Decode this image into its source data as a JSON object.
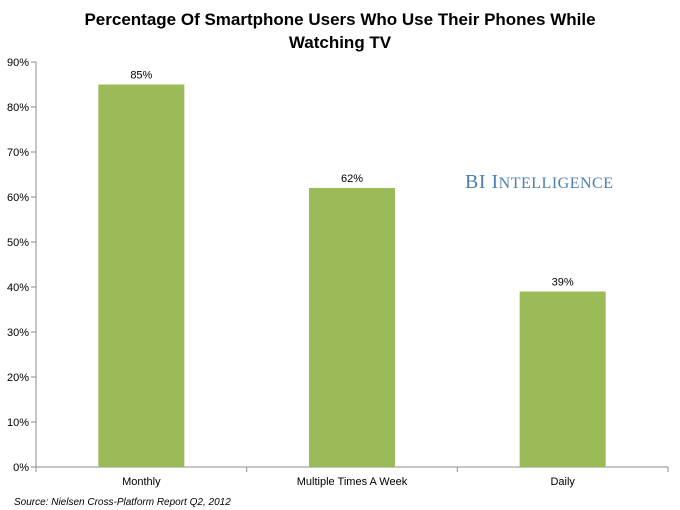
{
  "chart_data": {
    "type": "bar",
    "title_lines": [
      "Percentage Of Smartphone Users Who Use Their Phones While",
      "Watching TV"
    ],
    "categories": [
      "Monthly",
      "Multiple Times A Week",
      "Daily"
    ],
    "values": [
      85,
      62,
      39
    ],
    "data_labels": [
      "85%",
      "62%",
      "39%"
    ],
    "y_ticks": [
      "0%",
      "10%",
      "20%",
      "30%",
      "40%",
      "50%",
      "60%",
      "70%",
      "80%",
      "90%"
    ],
    "ylim": [
      0,
      90
    ],
    "grid": false,
    "colors": {
      "bar": "#9bbb59",
      "axis": "#8c8c8c"
    }
  },
  "branding": {
    "text": "BI Intelligence",
    "color": "#4a7fb0"
  },
  "source": "Source: Nielsen Cross-Platform Report Q2, 2012"
}
